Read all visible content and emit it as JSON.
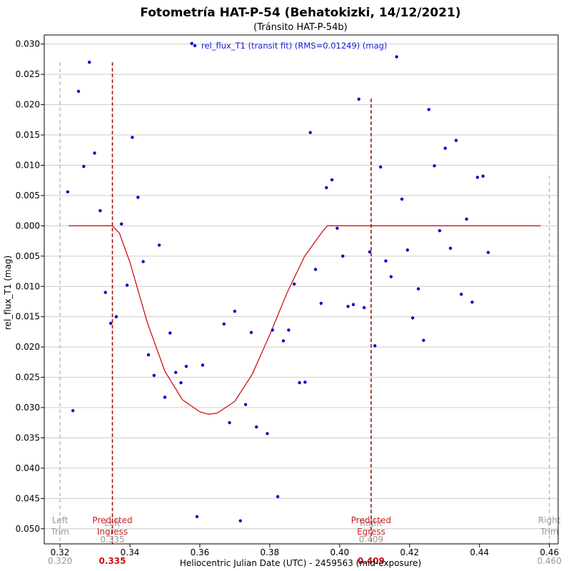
{
  "chart_data": {
    "type": "scatter",
    "title": "Fotometría HAT-P-54 (Behatokizki, 14/12/2021)",
    "subtitle": "(Tránsito HAT-P-54b)",
    "xlabel": "Heliocentric Julian Date (UTC) - 2459563 (mid-exposure)",
    "ylabel": "rel_flux_T1 (mag)",
    "xlim": [
      0.3155,
      0.4625
    ],
    "ylim": [
      -0.0525,
      0.0315
    ],
    "y_reversed": true,
    "grid": true,
    "xticks": [
      0.32,
      0.34,
      0.36,
      0.38,
      0.4,
      0.42,
      0.44,
      0.46
    ],
    "xtick_labels": [
      "0.32",
      "0.34",
      "0.36",
      "0.38",
      "0.40",
      "0.42",
      "0.44",
      "0.46"
    ],
    "yticks": [
      0.03,
      0.025,
      0.02,
      0.015,
      0.01,
      0.005,
      0.0,
      -0.005,
      -0.01,
      -0.015,
      -0.02,
      -0.025,
      -0.03,
      -0.035,
      -0.04,
      -0.045,
      -0.05
    ],
    "ytick_labels": [
      "0.030",
      "0.025",
      "0.020",
      "0.015",
      "0.010",
      "0.005",
      "0.000",
      "0.005",
      "0.010",
      "0.015",
      "0.020",
      "0.025",
      "0.030",
      "0.035",
      "0.040",
      "0.045",
      "0.050"
    ],
    "legend": {
      "label": "rel_flux_T1 (transit fit) (RMS=0.01249) (mag)",
      "placement": "top-center",
      "color": "#1a1adc"
    },
    "colors": {
      "points": "#0000cc",
      "fit": "#cc0000",
      "predicted": "#a01414",
      "trim": "#999999",
      "grid": "#cccccc"
    },
    "series": [
      {
        "name": "rel_flux_T1",
        "kind": "points",
        "points": [
          [
            0.3222,
            0.0056
          ],
          [
            0.3237,
            -0.0305
          ],
          [
            0.3253,
            0.0222
          ],
          [
            0.3268,
            0.0098
          ],
          [
            0.3284,
            0.027
          ],
          [
            0.3299,
            0.012
          ],
          [
            0.3315,
            0.0025
          ],
          [
            0.333,
            -0.011
          ],
          [
            0.3345,
            -0.0161
          ],
          [
            0.3361,
            -0.015
          ],
          [
            0.3376,
            0.0003
          ],
          [
            0.3392,
            -0.0098
          ],
          [
            0.3407,
            0.0146
          ],
          [
            0.3423,
            0.0047
          ],
          [
            0.3438,
            -0.0059
          ],
          [
            0.3453,
            -0.0213
          ],
          [
            0.3469,
            -0.0247
          ],
          [
            0.3484,
            -0.0032
          ],
          [
            0.35,
            -0.0283
          ],
          [
            0.3515,
            -0.0177
          ],
          [
            0.3531,
            -0.0242
          ],
          [
            0.3546,
            -0.0259
          ],
          [
            0.3561,
            -0.0232
          ],
          [
            0.3577,
            0.0301
          ],
          [
            0.3592,
            -0.048
          ],
          [
            0.3608,
            -0.023
          ],
          [
            0.3669,
            -0.0162
          ],
          [
            0.3685,
            -0.0325
          ],
          [
            0.37,
            -0.0141
          ],
          [
            0.3716,
            -0.0487
          ],
          [
            0.3731,
            -0.0295
          ],
          [
            0.3747,
            -0.0176
          ],
          [
            0.3762,
            -0.0332
          ],
          [
            0.3793,
            -0.0343
          ],
          [
            0.3808,
            -0.0172
          ],
          [
            0.3823,
            -0.0447
          ],
          [
            0.3839,
            -0.019
          ],
          [
            0.3854,
            -0.0172
          ],
          [
            0.387,
            -0.0096
          ],
          [
            0.3885,
            -0.0259
          ],
          [
            0.3901,
            -0.0258
          ],
          [
            0.3916,
            0.0154
          ],
          [
            0.3931,
            -0.0072
          ],
          [
            0.3947,
            -0.0128
          ],
          [
            0.3962,
            0.0063
          ],
          [
            0.3978,
            0.0076
          ],
          [
            0.3993,
            -0.0004
          ],
          [
            0.4009,
            -0.005
          ],
          [
            0.4024,
            -0.0133
          ],
          [
            0.4039,
            -0.013
          ],
          [
            0.4055,
            0.0209
          ],
          [
            0.407,
            -0.0135
          ],
          [
            0.4086,
            -0.0043
          ],
          [
            0.4101,
            -0.0198
          ],
          [
            0.4117,
            0.0097
          ],
          [
            0.4132,
            -0.0058
          ],
          [
            0.4147,
            -0.0084
          ],
          [
            0.4163,
            0.0279
          ],
          [
            0.4178,
            0.0044
          ],
          [
            0.4194,
            -0.004
          ],
          [
            0.4209,
            -0.0152
          ],
          [
            0.4225,
            -0.0104
          ],
          [
            0.424,
            -0.0189
          ],
          [
            0.4255,
            0.0192
          ],
          [
            0.4271,
            0.0099
          ],
          [
            0.4286,
            -0.0008
          ],
          [
            0.4302,
            0.0128
          ],
          [
            0.4317,
            -0.0037
          ],
          [
            0.4333,
            0.0141
          ],
          [
            0.4348,
            -0.0113
          ],
          [
            0.4363,
            0.0011
          ],
          [
            0.4379,
            -0.0126
          ],
          [
            0.4394,
            0.008
          ],
          [
            0.441,
            0.0082
          ],
          [
            0.4425,
            -0.0044
          ]
        ]
      },
      {
        "name": "transit fit",
        "kind": "line",
        "points": [
          [
            0.3225,
            0.0
          ],
          [
            0.335,
            0.0
          ],
          [
            0.337,
            -0.0012
          ],
          [
            0.34,
            -0.006
          ],
          [
            0.345,
            -0.016
          ],
          [
            0.35,
            -0.024
          ],
          [
            0.355,
            -0.0287
          ],
          [
            0.36,
            -0.0307
          ],
          [
            0.3625,
            -0.0311
          ],
          [
            0.365,
            -0.0309
          ],
          [
            0.37,
            -0.029
          ],
          [
            0.375,
            -0.0245
          ],
          [
            0.38,
            -0.018
          ],
          [
            0.385,
            -0.011
          ],
          [
            0.39,
            -0.005
          ],
          [
            0.395,
            -0.001
          ],
          [
            0.3965,
            0.0
          ],
          [
            0.4575,
            0.0
          ]
        ]
      }
    ],
    "markers": [
      {
        "kind": "trim",
        "x": 0.32,
        "top": 0.027,
        "label_top": "Left",
        "label_bottom": "Trim",
        "value_label": "0.320"
      },
      {
        "kind": "predicted",
        "x": 0.335,
        "top": 0.027,
        "label_top": "Predicted",
        "label_bottom": "Ingress",
        "label_behind": "Left",
        "value_label": "0.335",
        "value_label2": "0.335"
      },
      {
        "kind": "predicted",
        "x": 0.409,
        "top": 0.021,
        "label_top": "Predicted",
        "label_bottom": "Egress",
        "label_behind": "Right",
        "value_label": "0.409",
        "value_label2": "0.409"
      },
      {
        "kind": "trim",
        "x": 0.46,
        "top": 0.0083,
        "label_top": "Right",
        "label_bottom": "Trim",
        "value_label": "0.460"
      }
    ]
  }
}
